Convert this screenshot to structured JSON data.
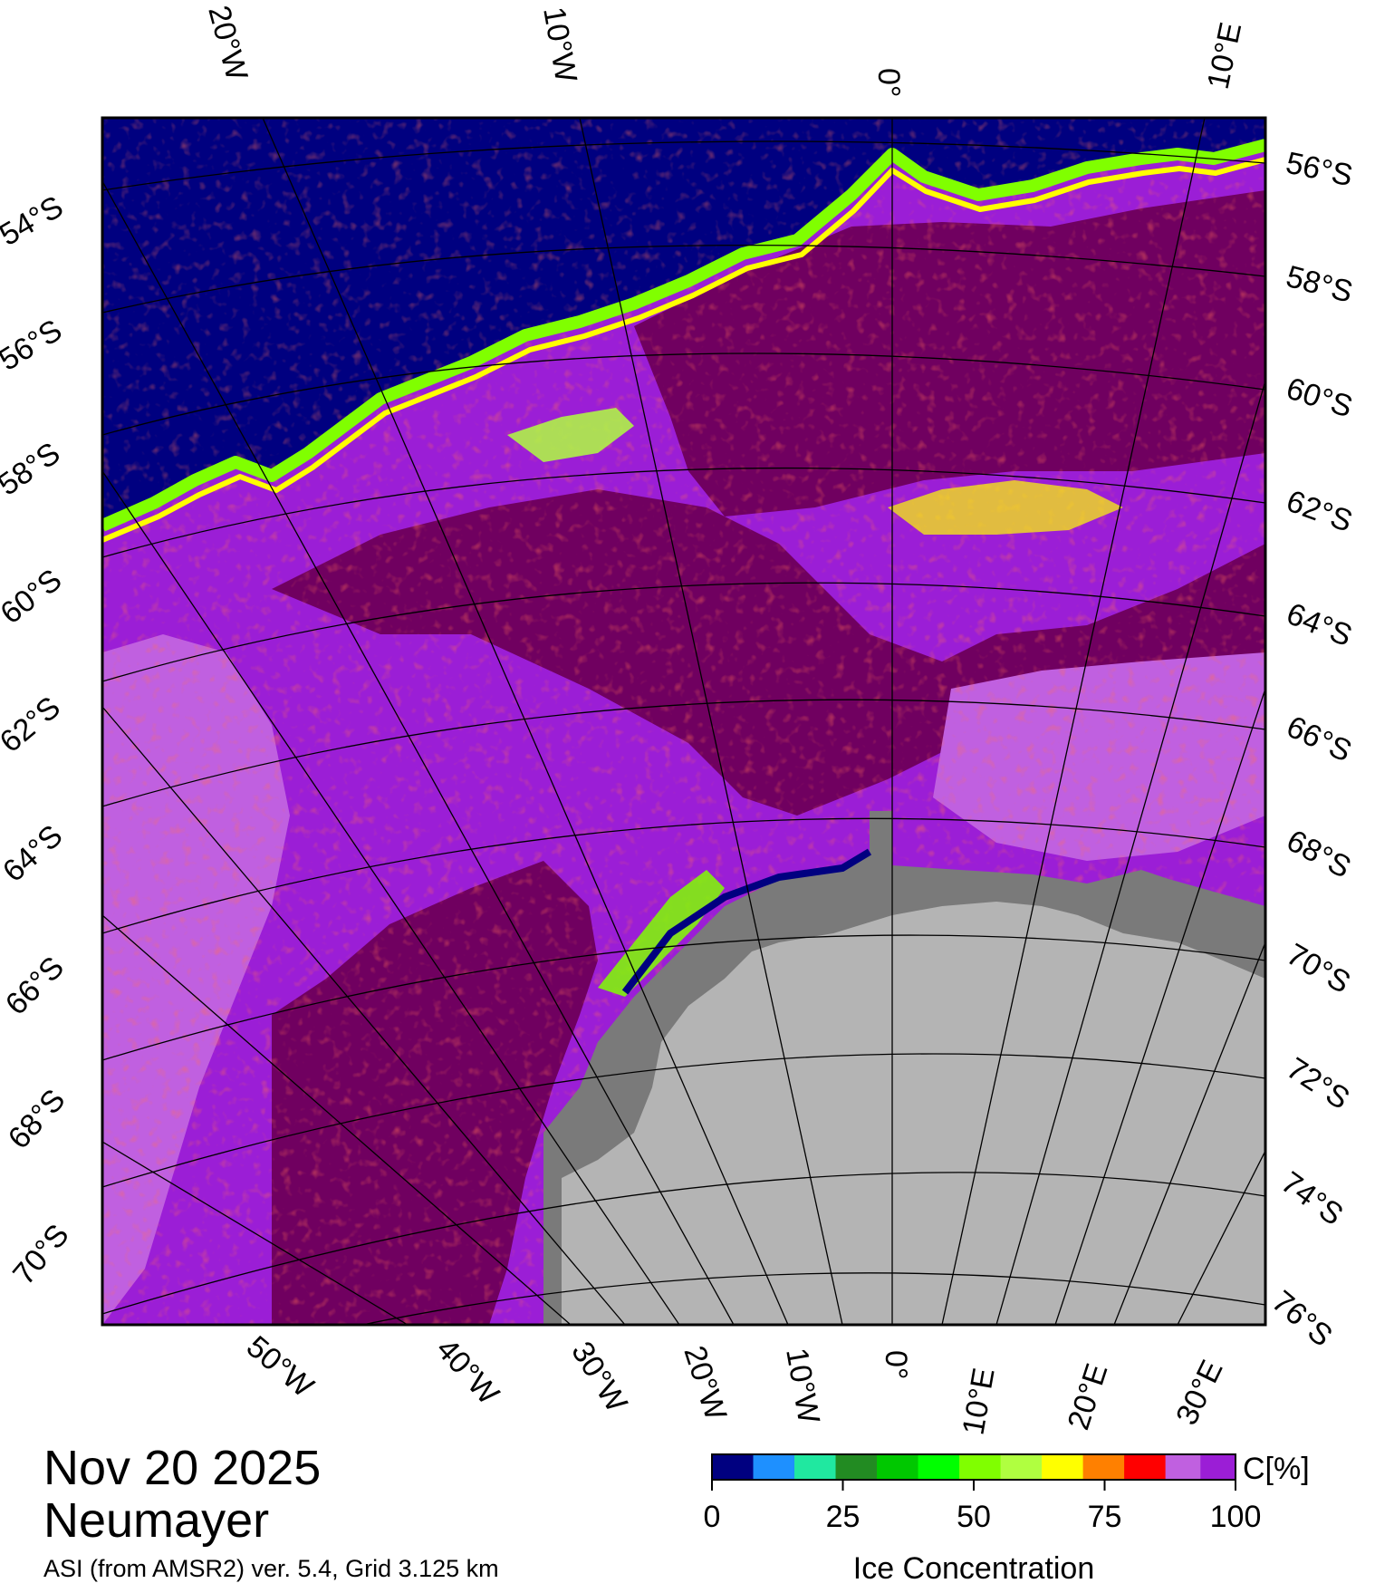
{
  "date": "Nov 20 2025",
  "station": "Neumayer",
  "product_info": "ASI (from AMSR2) ver. 5.4,  Grid 3.125 km",
  "map": {
    "top_longitude_labels": [
      "20°W",
      "10°W",
      "0°",
      "10°E"
    ],
    "bottom_longitude_labels": [
      "50°W",
      "40°W",
      "30°W",
      "20°W",
      "10°W",
      "0°",
      "10°E",
      "20°E",
      "30°E"
    ],
    "left_latitude_labels": [
      "54°S",
      "56°S",
      "58°S",
      "60°S",
      "62°S",
      "64°S",
      "66°S",
      "68°S",
      "70°S"
    ],
    "right_latitude_labels": [
      "56°S",
      "58°S",
      "60°S",
      "62°S",
      "64°S",
      "66°S",
      "68°S",
      "70°S",
      "72°S",
      "74°S",
      "76°S"
    ],
    "colors": {
      "ocean": "#000080",
      "ice_dense": "#700060",
      "ice_high": "#9b1ed6",
      "ice_mid": "#c060e0",
      "land": "#b4b4b4",
      "ice_shelf": "#7a7a7a"
    }
  },
  "colorbar": {
    "title": "Ice Concentration",
    "unit": "C[%]",
    "tick_labels": [
      "0",
      "25",
      "50",
      "75",
      "100"
    ],
    "colors": [
      "#000080",
      "#1e90ff",
      "#20e8a0",
      "#228b22",
      "#00c800",
      "#00ff00",
      "#80ff00",
      "#b0ff40",
      "#ffff00",
      "#ff8000",
      "#ff0000",
      "#c060e0",
      "#9b1ed6"
    ]
  }
}
